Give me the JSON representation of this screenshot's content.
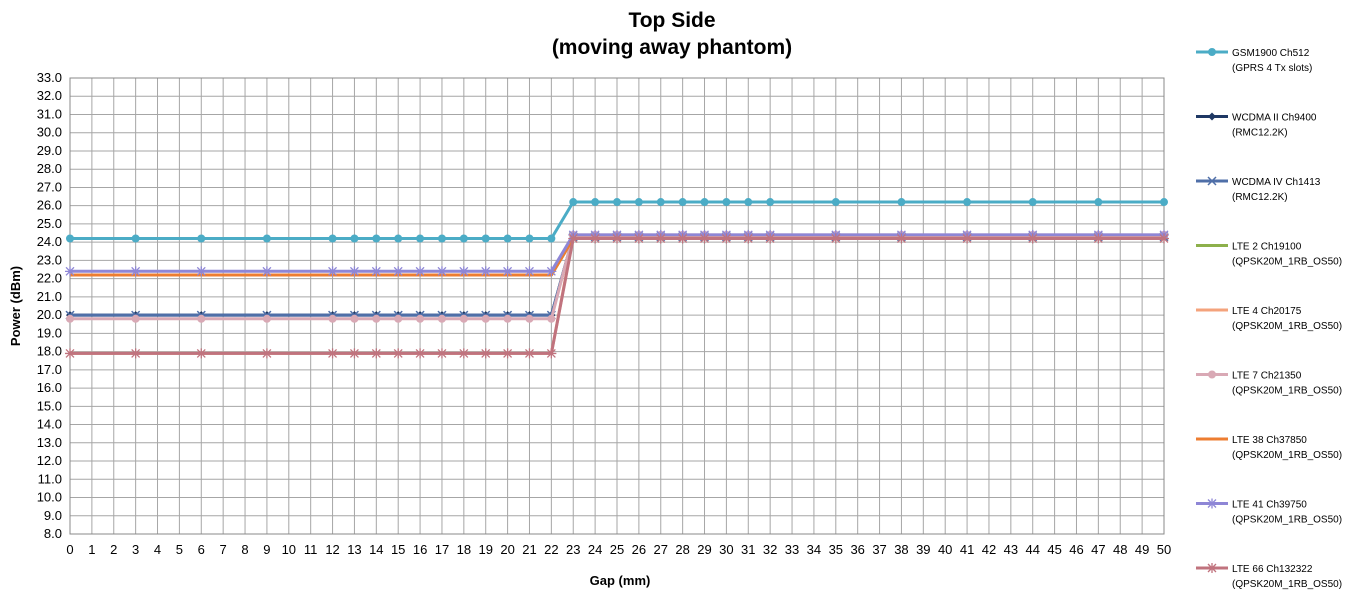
{
  "chart_data": {
    "type": "line",
    "title": [
      "Top Side",
      "(moving away phantom)"
    ],
    "xlabel": "Gap (mm)",
    "ylabel": "Power (dBm)",
    "xlim": [
      0,
      50
    ],
    "ylim": [
      8.0,
      33.0
    ],
    "x_ticks": [
      0,
      1,
      2,
      3,
      4,
      5,
      6,
      7,
      8,
      9,
      10,
      11,
      12,
      13,
      14,
      15,
      16,
      17,
      18,
      19,
      20,
      21,
      22,
      23,
      24,
      25,
      26,
      27,
      28,
      29,
      30,
      31,
      32,
      33,
      34,
      35,
      36,
      37,
      38,
      39,
      40,
      41,
      42,
      43,
      44,
      45,
      46,
      47,
      48,
      49,
      50
    ],
    "y_ticks": [
      "8.0",
      "9.0",
      "10.0",
      "11.0",
      "12.0",
      "13.0",
      "14.0",
      "15.0",
      "16.0",
      "17.0",
      "18.0",
      "19.0",
      "20.0",
      "21.0",
      "22.0",
      "23.0",
      "24.0",
      "25.0",
      "26.0",
      "27.0",
      "28.0",
      "29.0",
      "30.0",
      "31.0",
      "32.0",
      "33.0"
    ],
    "grid": true,
    "legend_position": "right",
    "x": [
      0,
      3,
      6,
      9,
      12,
      13,
      14,
      15,
      16,
      17,
      18,
      19,
      20,
      21,
      22,
      23,
      24,
      25,
      26,
      27,
      28,
      29,
      30,
      31,
      32,
      35,
      38,
      41,
      44,
      47,
      50
    ],
    "series": [
      {
        "name": "GSM1900  Ch512",
        "name2": "(GPRS 4 Tx slots)",
        "color": "#4bacc6",
        "marker": "circle",
        "values": [
          24.2,
          24.2,
          24.2,
          24.2,
          24.2,
          24.2,
          24.2,
          24.2,
          24.2,
          24.2,
          24.2,
          24.2,
          24.2,
          24.2,
          24.2,
          26.2,
          26.2,
          26.2,
          26.2,
          26.2,
          26.2,
          26.2,
          26.2,
          26.2,
          26.2,
          26.2,
          26.2,
          26.2,
          26.2,
          26.2,
          26.2
        ]
      },
      {
        "name": "WCDMA II Ch9400",
        "name2": "(RMC12.2K)",
        "color": "#1f3864",
        "marker": "diamond",
        "values": [
          20.0,
          20.0,
          20.0,
          20.0,
          20.0,
          20.0,
          20.0,
          20.0,
          20.0,
          20.0,
          20.0,
          20.0,
          20.0,
          20.0,
          20.0,
          24.3,
          24.3,
          24.3,
          24.3,
          24.3,
          24.3,
          24.3,
          24.3,
          24.3,
          24.3,
          24.3,
          24.3,
          24.3,
          24.3,
          24.3,
          24.3
        ]
      },
      {
        "name": "WCDMA IV Ch1413",
        "name2": "(RMC12.2K)",
        "color": "#4f6fa8",
        "marker": "cross",
        "values": [
          20.0,
          20.0,
          20.0,
          20.0,
          20.0,
          20.0,
          20.0,
          20.0,
          20.0,
          20.0,
          20.0,
          20.0,
          20.0,
          20.0,
          20.0,
          24.3,
          24.3,
          24.3,
          24.3,
          24.3,
          24.3,
          24.3,
          24.3,
          24.3,
          24.3,
          24.3,
          24.3,
          24.3,
          24.3,
          24.3,
          24.3
        ]
      },
      {
        "name": "LTE 2 Ch19100",
        "name2": "(QPSK20M_1RB_OS50)",
        "color": "#8db04b",
        "marker": "none",
        "values": [
          22.2,
          22.2,
          22.2,
          22.2,
          22.2,
          22.2,
          22.2,
          22.2,
          22.2,
          22.2,
          22.2,
          22.2,
          22.2,
          22.2,
          22.2,
          24.2,
          24.2,
          24.2,
          24.2,
          24.2,
          24.2,
          24.2,
          24.2,
          24.2,
          24.2,
          24.2,
          24.2,
          24.2,
          24.2,
          24.2,
          24.2
        ]
      },
      {
        "name": "LTE 4 Ch20175",
        "name2": "(QPSK20M_1RB_OS50)",
        "color": "#f4a37c",
        "marker": "none",
        "values": [
          17.9,
          17.9,
          17.9,
          17.9,
          17.9,
          17.9,
          17.9,
          17.9,
          17.9,
          17.9,
          17.9,
          17.9,
          17.9,
          17.9,
          17.9,
          24.3,
          24.3,
          24.3,
          24.3,
          24.3,
          24.3,
          24.3,
          24.3,
          24.3,
          24.3,
          24.3,
          24.3,
          24.3,
          24.3,
          24.3,
          24.3
        ]
      },
      {
        "name": "LTE 7 Ch21350",
        "name2": "(QPSK20M_1RB_OS50)",
        "color": "#d9a9b5",
        "marker": "circle",
        "values": [
          19.8,
          19.8,
          19.8,
          19.8,
          19.8,
          19.8,
          19.8,
          19.8,
          19.8,
          19.8,
          19.8,
          19.8,
          19.8,
          19.8,
          19.8,
          24.4,
          24.4,
          24.4,
          24.4,
          24.4,
          24.4,
          24.4,
          24.4,
          24.4,
          24.4,
          24.4,
          24.4,
          24.4,
          24.4,
          24.4,
          24.4
        ]
      },
      {
        "name": "LTE 38 Ch37850",
        "name2": "(QPSK20M_1RB_OS50)",
        "color": "#ed7d31",
        "marker": "none",
        "values": [
          22.2,
          22.2,
          22.2,
          22.2,
          22.2,
          22.2,
          22.2,
          22.2,
          22.2,
          22.2,
          22.2,
          22.2,
          22.2,
          22.2,
          22.2,
          24.2,
          24.2,
          24.2,
          24.2,
          24.2,
          24.2,
          24.2,
          24.2,
          24.2,
          24.2,
          24.2,
          24.2,
          24.2,
          24.2,
          24.2,
          24.2
        ]
      },
      {
        "name": "LTE 41 Ch39750",
        "name2": "(QPSK20M_1RB_OS50)",
        "color": "#8e86d6",
        "marker": "star",
        "values": [
          22.4,
          22.4,
          22.4,
          22.4,
          22.4,
          22.4,
          22.4,
          22.4,
          22.4,
          22.4,
          22.4,
          22.4,
          22.4,
          22.4,
          22.4,
          24.4,
          24.4,
          24.4,
          24.4,
          24.4,
          24.4,
          24.4,
          24.4,
          24.4,
          24.4,
          24.4,
          24.4,
          24.4,
          24.4,
          24.4,
          24.4
        ]
      },
      {
        "name": "LTE 66 Ch132322",
        "name2": "(QPSK20M_1RB_OS50)",
        "color": "#c0737e",
        "marker": "star",
        "values": [
          17.9,
          17.9,
          17.9,
          17.9,
          17.9,
          17.9,
          17.9,
          17.9,
          17.9,
          17.9,
          17.9,
          17.9,
          17.9,
          17.9,
          17.9,
          24.2,
          24.2,
          24.2,
          24.2,
          24.2,
          24.2,
          24.2,
          24.2,
          24.2,
          24.2,
          24.2,
          24.2,
          24.2,
          24.2,
          24.2,
          24.2
        ]
      }
    ]
  }
}
